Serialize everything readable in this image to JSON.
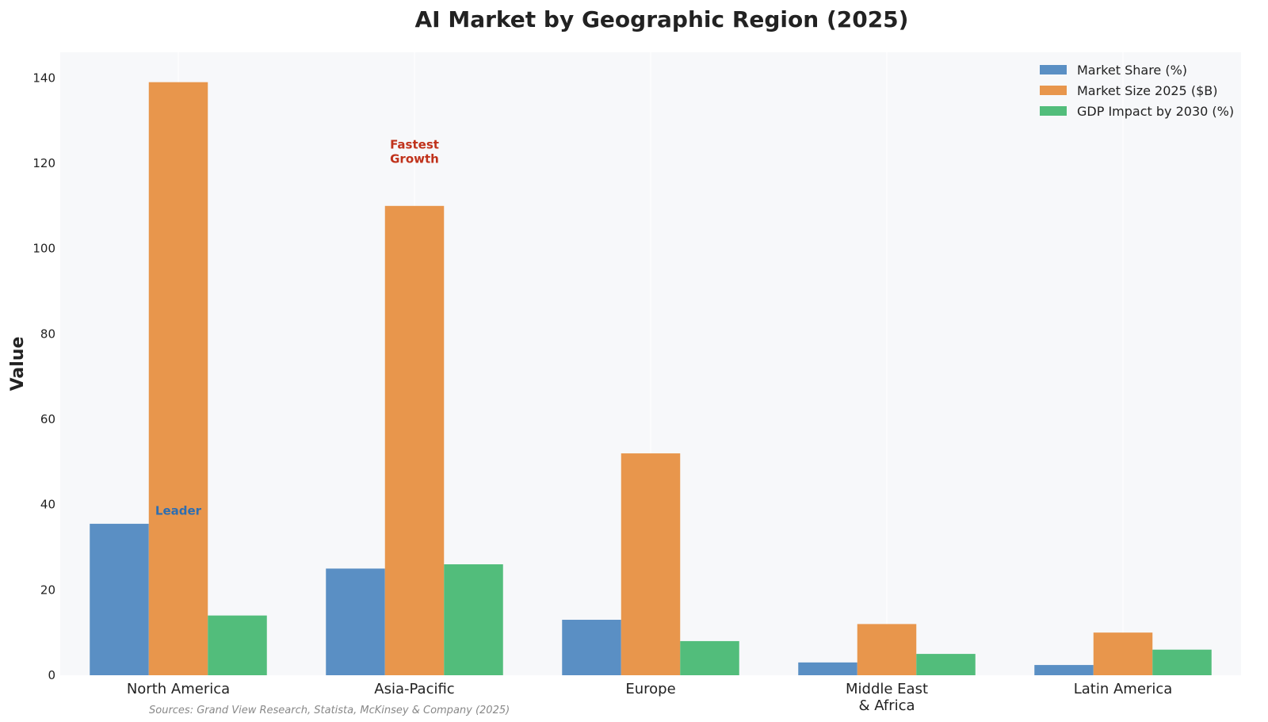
{
  "chart_data": {
    "type": "bar",
    "title": "AI Market by Geographic Region (2025)",
    "xlabel": "",
    "ylabel": "Value",
    "ylim": [
      0,
      146
    ],
    "yticks": [
      0,
      20,
      40,
      60,
      80,
      100,
      120,
      140
    ],
    "grid": "vertical",
    "legend_position": "top-right",
    "categories": [
      [
        "North America"
      ],
      [
        "Asia-Pacific"
      ],
      [
        "Europe"
      ],
      [
        "Middle East",
        "& Africa"
      ],
      [
        "Latin America"
      ]
    ],
    "series": [
      {
        "name": "Market Share (%)",
        "color": "#5a8fc4",
        "values": [
          35.5,
          25,
          13,
          3,
          2.4
        ]
      },
      {
        "name": "Market Size 2025 ($B)",
        "color": "#e8964c",
        "values": [
          139,
          110,
          52,
          12,
          10
        ]
      },
      {
        "name": "GDP Impact by 2030 (%)",
        "color": "#52bd7b",
        "values": [
          14,
          26,
          8,
          5,
          6
        ]
      }
    ],
    "annotations": [
      {
        "lines": [
          "Leader"
        ],
        "category_index": 0,
        "y": 38.5,
        "color": "#2f6eb0"
      },
      {
        "lines": [
          "Fastest",
          "Growth"
        ],
        "category_index": 1,
        "y": 121,
        "color": "#c0321b"
      }
    ],
    "source": "Sources: Grand View Research, Statista, McKinsey & Company (2025)"
  }
}
